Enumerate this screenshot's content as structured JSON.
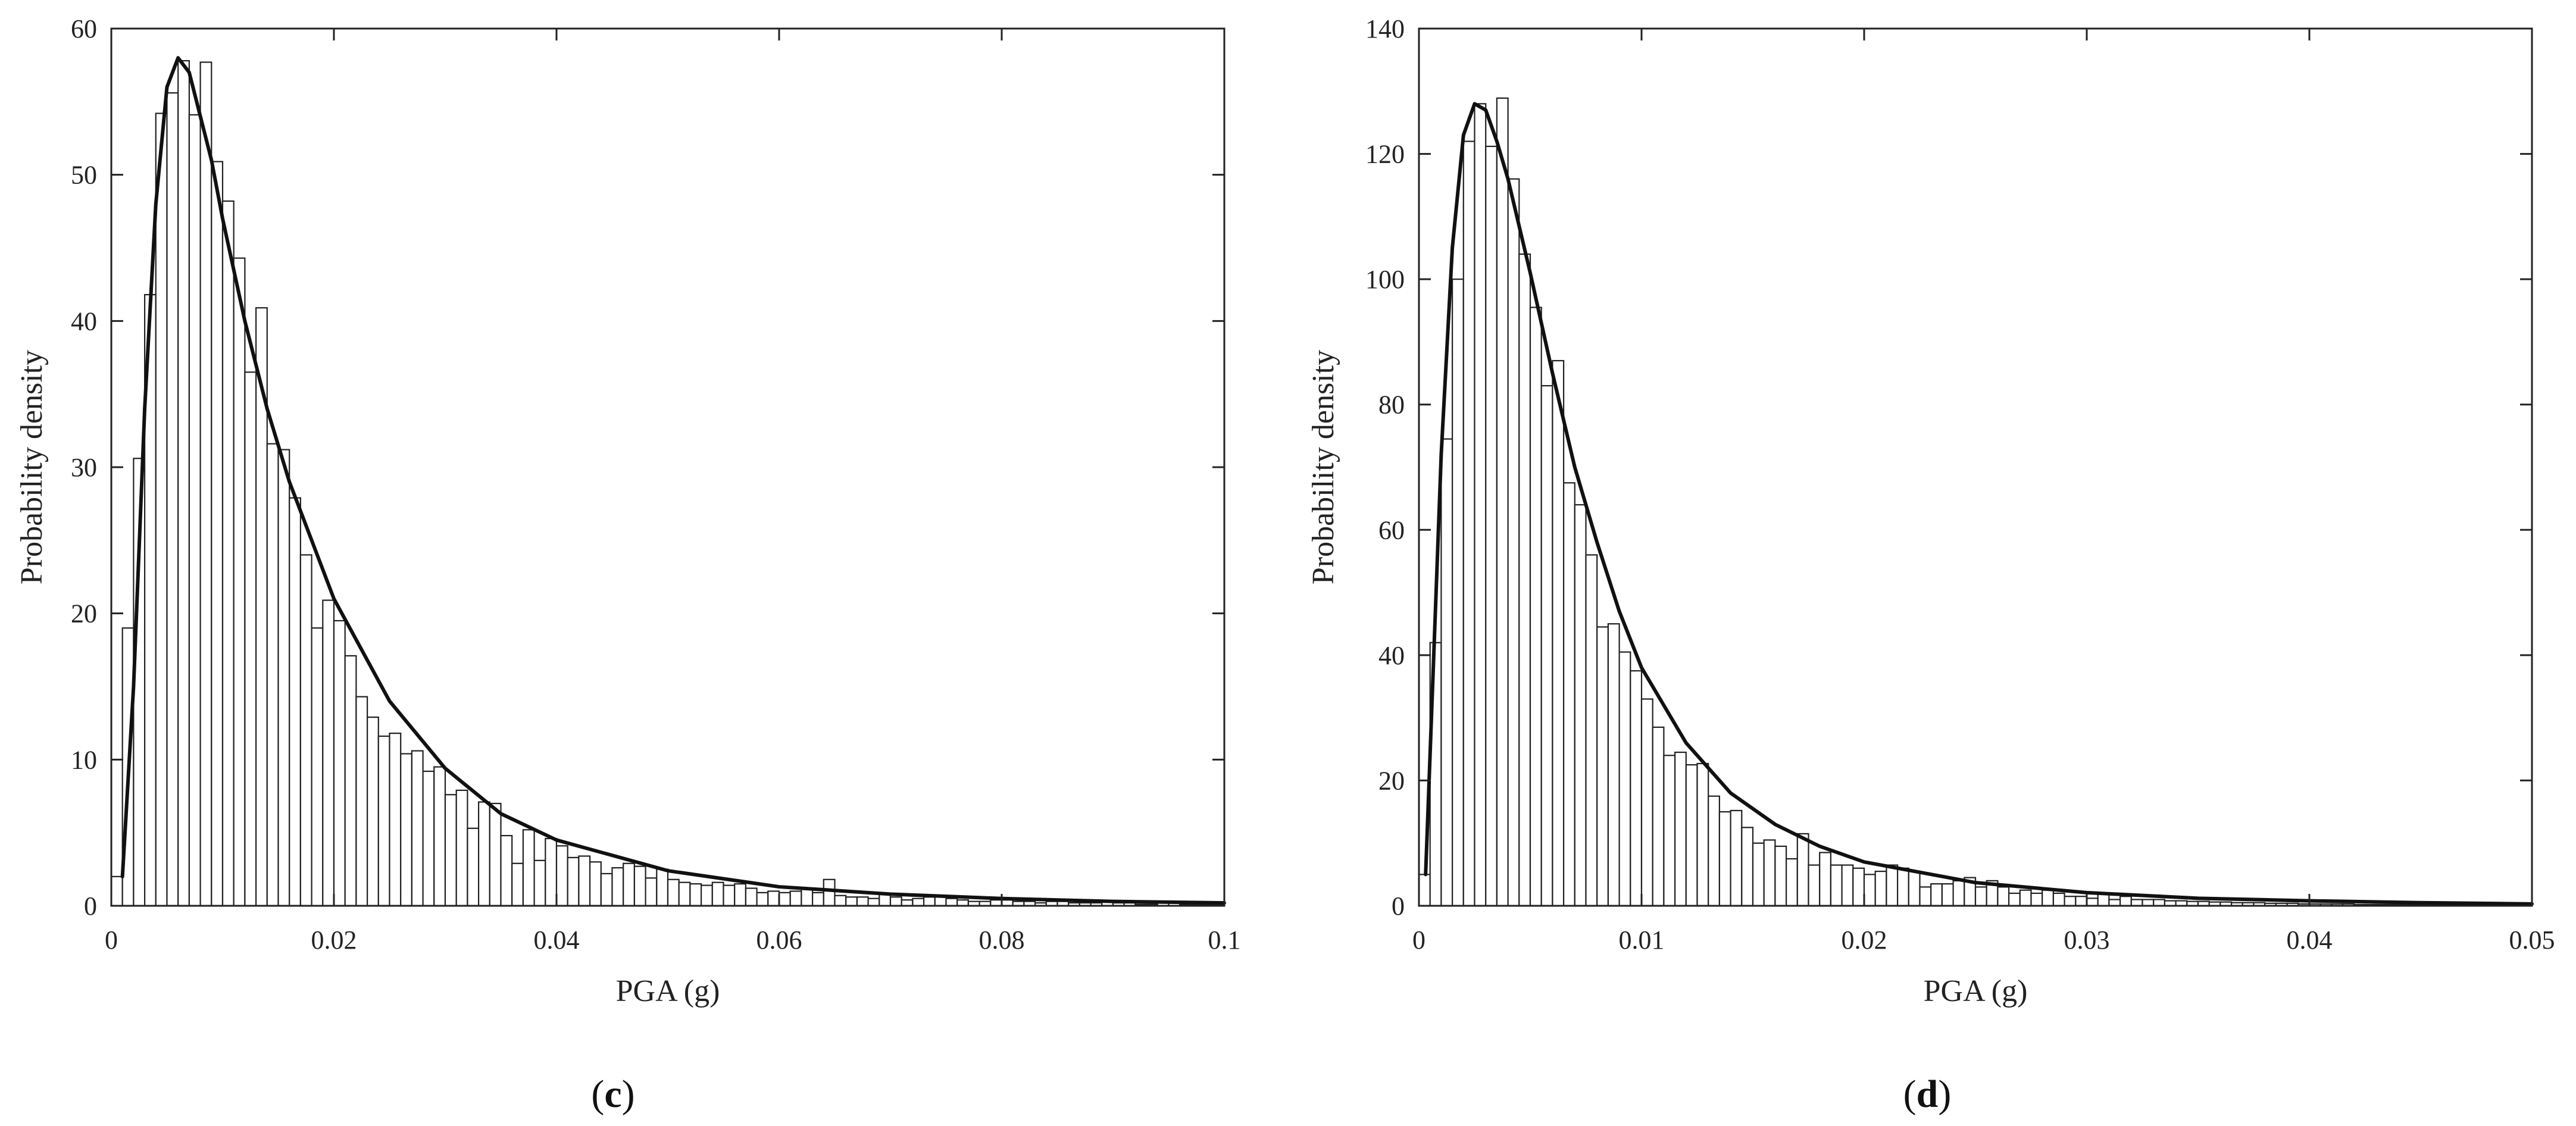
{
  "chart_data": [
    {
      "type": "bar",
      "panel": "c",
      "xlabel": "PGA (g)",
      "ylabel": "Probability density",
      "xlim": [
        0,
        0.1
      ],
      "ylim": [
        0,
        60
      ],
      "xticks": [
        0,
        0.02,
        0.04,
        0.06,
        0.08,
        0.1
      ],
      "xtick_labels": [
        "0",
        "0.02",
        "0.04",
        "0.06",
        "0.08",
        "0.1"
      ],
      "yticks": [
        0,
        10,
        20,
        30,
        40,
        50,
        60
      ],
      "ytick_labels": [
        "0",
        "10",
        "20",
        "30",
        "40",
        "50",
        "60"
      ],
      "grid": false,
      "bin_width": 0.001,
      "bin_start": 0,
      "values": [
        2,
        19,
        30.6,
        41.8,
        54.2,
        55.6,
        57.8,
        54.1,
        57.7,
        50.9,
        48.2,
        44.3,
        36.5,
        40.9,
        31.6,
        31.2,
        27.9,
        24,
        19,
        20.9,
        19.5,
        17.1,
        14.3,
        12.9,
        11.6,
        11.8,
        10.4,
        10.6,
        9.2,
        9.5,
        7.6,
        7.9,
        5.3,
        7.1,
        7,
        4.8,
        2.9,
        5.2,
        3.1,
        4.6,
        4.1,
        3.3,
        3.4,
        3,
        2.2,
        2.6,
        2.9,
        2.7,
        1.9,
        2.5,
        1.8,
        1.6,
        1.5,
        1.4,
        1.6,
        1.4,
        1.5,
        1.2,
        0.9,
        1,
        0.9,
        1,
        1.2,
        0.9,
        1.8,
        0.7,
        0.6,
        0.6,
        0.5,
        0.8,
        0.6,
        0.4,
        0.5,
        0.6,
        0.7,
        0.5,
        0.4,
        0.3,
        0.3,
        0.4,
        0.4,
        0.3,
        0.3,
        0.2,
        0.3,
        0.3,
        0.2,
        0.2,
        0.2,
        0.3,
        0.2,
        0.2,
        0.1,
        0.1,
        0.2,
        0.2,
        0.1,
        0.1,
        0.1,
        0.1
      ],
      "fit_curve": {
        "x": [
          0.001,
          0.002,
          0.003,
          0.004,
          0.005,
          0.006,
          0.007,
          0.008,
          0.009,
          0.01,
          0.012,
          0.014,
          0.016,
          0.018,
          0.02,
          0.025,
          0.03,
          0.035,
          0.04,
          0.05,
          0.06,
          0.07,
          0.08,
          0.09,
          0.1
        ],
        "y": [
          2,
          15,
          34,
          48,
          56,
          58,
          57,
          54,
          51,
          47,
          40,
          34,
          29,
          25,
          21,
          14,
          9.4,
          6.3,
          4.5,
          2.4,
          1.3,
          0.8,
          0.5,
          0.3,
          0.2
        ]
      }
    },
    {
      "type": "bar",
      "panel": "d",
      "xlabel": "PGA (g)",
      "ylabel": "Probability density",
      "xlim": [
        0,
        0.05
      ],
      "ylim": [
        0,
        140
      ],
      "xticks": [
        0,
        0.01,
        0.02,
        0.03,
        0.04,
        0.05
      ],
      "xtick_labels": [
        "0",
        "0.01",
        "0.02",
        "0.03",
        "0.04",
        "0.05"
      ],
      "yticks": [
        0,
        20,
        40,
        60,
        80,
        100,
        120,
        140
      ],
      "ytick_labels": [
        "0",
        "20",
        "40",
        "60",
        "80",
        "100",
        "120",
        "140"
      ],
      "grid": false,
      "bin_width": 0.0005,
      "bin_start": 0,
      "values": [
        5,
        42,
        74.5,
        100,
        122,
        128,
        121.2,
        128.9,
        116,
        104,
        95.5,
        83,
        87,
        67.5,
        64,
        56,
        44.5,
        45,
        40.5,
        37.5,
        33,
        28.5,
        24,
        24.5,
        22.5,
        22.7,
        17.5,
        15,
        15.2,
        12.5,
        10,
        10.5,
        9.5,
        7.5,
        11.5,
        6.5,
        8.5,
        6.5,
        6.5,
        6,
        5,
        5.5,
        6.5,
        6,
        5.5,
        3,
        3.5,
        3.5,
        4,
        4.5,
        3,
        4,
        3,
        2,
        2.5,
        2,
        2.5,
        2,
        1.5,
        1.5,
        1.2,
        2,
        1,
        1.5,
        1,
        1,
        1,
        0.8,
        0.8,
        0.7,
        0.7,
        0.6,
        0.6,
        0.5,
        0.5,
        0.5,
        0.4,
        0.4,
        0.4,
        0.3,
        0.3,
        0.3,
        0.3,
        0.3,
        0.2,
        0.2,
        0.2,
        0.2,
        0.2,
        0.2,
        0.2,
        0.2,
        0.1,
        0.1,
        0.1,
        0.1,
        0.1,
        0.1,
        0.1,
        0.1
      ],
      "fit_curve": {
        "x": [
          0.0003,
          0.001,
          0.0015,
          0.002,
          0.0025,
          0.003,
          0.0035,
          0.004,
          0.005,
          0.006,
          0.007,
          0.008,
          0.009,
          0.01,
          0.012,
          0.014,
          0.016,
          0.018,
          0.02,
          0.025,
          0.03,
          0.035,
          0.04,
          0.045,
          0.05
        ],
        "y": [
          5,
          72,
          105,
          123,
          128,
          127,
          122,
          116,
          101,
          85,
          70,
          58,
          47,
          38,
          26,
          18,
          13,
          9.5,
          7,
          3.7,
          2.1,
          1.2,
          0.8,
          0.5,
          0.3
        ]
      }
    }
  ],
  "captions": [
    {
      "open": "(",
      "letter": "c",
      "close": ")"
    },
    {
      "open": "(",
      "letter": "d",
      "close": ")"
    }
  ]
}
